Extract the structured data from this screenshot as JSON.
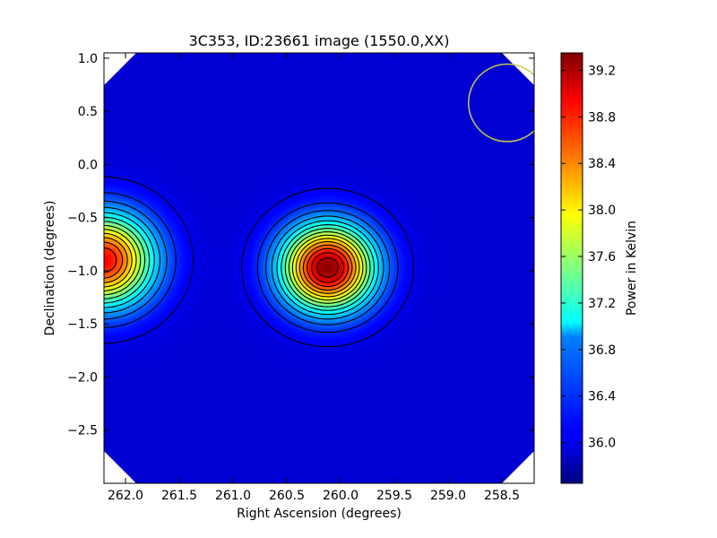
{
  "chart_data": {
    "type": "heatmap",
    "title": "3C353, ID:23661 image (1550.0,XX)",
    "xlabel": "Right Ascension (degrees)",
    "ylabel": "Declination (degrees)",
    "colorbar_label": "Power in Kelvin",
    "xlim": [
      262.2,
      258.2
    ],
    "ylim": [
      -3.0,
      1.05
    ],
    "x_ticks": [
      262.0,
      261.5,
      261.0,
      260.5,
      260.0,
      259.5,
      259.0,
      258.5
    ],
    "x_tick_labels": [
      "262.0",
      "261.5",
      "261.0",
      "260.5",
      "260.0",
      "259.5",
      "259.0",
      "258.5"
    ],
    "y_ticks": [
      1.0,
      0.5,
      0.0,
      -0.5,
      -1.0,
      -1.5,
      -2.0,
      -2.5
    ],
    "y_tick_labels": [
      "1.0",
      "0.5",
      "0.0",
      "−0.5",
      "−1.0",
      "−1.5",
      "−2.0",
      "−2.5"
    ],
    "colorbar_range": [
      35.65,
      39.35
    ],
    "colorbar_ticks": [
      36.0,
      36.4,
      36.8,
      37.2,
      37.6,
      38.0,
      38.4,
      38.8,
      39.2
    ],
    "colorbar_tick_labels": [
      "36.0",
      "36.4",
      "36.8",
      "37.2",
      "37.6",
      "38.0",
      "38.4",
      "38.8",
      "39.2"
    ],
    "colormap": "jet",
    "background_level": 35.95,
    "sources": [
      {
        "ra": 260.12,
        "dec": -0.97,
        "peak": 39.3,
        "sigma_ra": 0.3,
        "sigma_dec": 0.28
      },
      {
        "ra": 262.2,
        "dec": -0.9,
        "peak": 38.9,
        "sigma_ra": 0.32,
        "sigma_dec": 0.3
      }
    ],
    "contours": "black",
    "beam_circle": {
      "ra": 258.45,
      "dec": 0.58,
      "radius_deg": 0.36,
      "color": "#c8c850"
    }
  }
}
